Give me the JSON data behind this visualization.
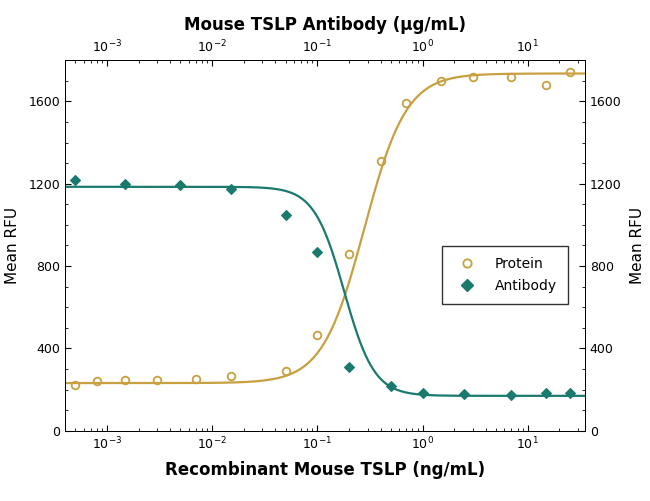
{
  "title_top": "Mouse TSLP Antibody (μg/mL)",
  "xlabel": "Recombinant Mouse TSLP (ng/mL)",
  "ylabel_left": "Mean RFU",
  "ylabel_right": "Mean RFU",
  "protein_x": [
    0.0005,
    0.0008,
    0.0015,
    0.003,
    0.007,
    0.015,
    0.05,
    0.1,
    0.2,
    0.4,
    0.7,
    1.5,
    3.0,
    7.0,
    15.0,
    25.0
  ],
  "protein_y": [
    225,
    240,
    245,
    248,
    252,
    265,
    290,
    465,
    860,
    1310,
    1590,
    1700,
    1720,
    1720,
    1680,
    1740
  ],
  "antibody_x": [
    0.0005,
    0.0015,
    0.005,
    0.015,
    0.05,
    0.1,
    0.2,
    0.5,
    1.0,
    2.5,
    7.0,
    15.0,
    25.0
  ],
  "antibody_y": [
    1220,
    1200,
    1195,
    1175,
    1050,
    870,
    310,
    220,
    185,
    180,
    175,
    185,
    185
  ],
  "protein_color": "#C8A040",
  "antibody_color": "#1A7A6E",
  "ylim": [
    0,
    1800
  ],
  "yticks": [
    0,
    400,
    800,
    1200,
    1600
  ],
  "xmin": 0.0004,
  "xmax": 35,
  "top_xmin": 0.0004,
  "top_xmax": 35,
  "background_color": "#ffffff"
}
